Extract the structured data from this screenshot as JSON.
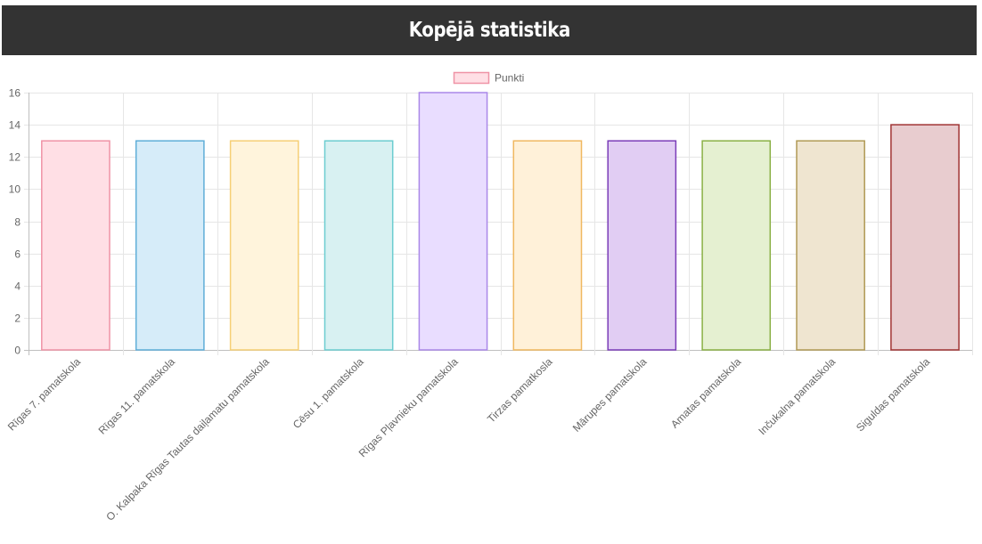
{
  "header": {
    "title": "Kopējā statistika"
  },
  "chart_data": {
    "type": "bar",
    "title": "",
    "xlabel": "",
    "ylabel": "",
    "ylim": [
      0,
      16
    ],
    "yticks": [
      0,
      2,
      4,
      6,
      8,
      10,
      12,
      14,
      16
    ],
    "grid": true,
    "legend_position": "top",
    "categories": [
      "Rīgas 7. pamatskola",
      "Rīgas 11. pamatskola",
      "O. Kalpaka Rīgas Tautas daiļamatu pamatskola",
      "Cēsu 1. pamatskola",
      "Rīgas Pļavnieku pamatskola",
      "Tirzas pamatkosla",
      "Mārupes pamatskola",
      "Amatas pamatskola",
      "Inčukalna pamatskola",
      "Siguldas pamatskola"
    ],
    "series": [
      {
        "name": "Punkti",
        "values": [
          13,
          13,
          13,
          13,
          16,
          13,
          13,
          13,
          13,
          14
        ],
        "fill_colors": [
          "#ffdfe5",
          "#d6ecf9",
          "#fff4dc",
          "#d8f1f2",
          "#e9ddff",
          "#fff1d9",
          "#e1cdf3",
          "#e5f0d1",
          "#efe5d0",
          "#e8cccf"
        ],
        "border_colors": [
          "#ef93a6",
          "#5faed8",
          "#f6cf75",
          "#6ccdd0",
          "#aa88e8",
          "#f0b860",
          "#7b3db8",
          "#8ab045",
          "#b09a55",
          "#a03434"
        ]
      }
    ],
    "legend": {
      "fill": "#ffdfe5",
      "border": "#ef93a6"
    }
  }
}
